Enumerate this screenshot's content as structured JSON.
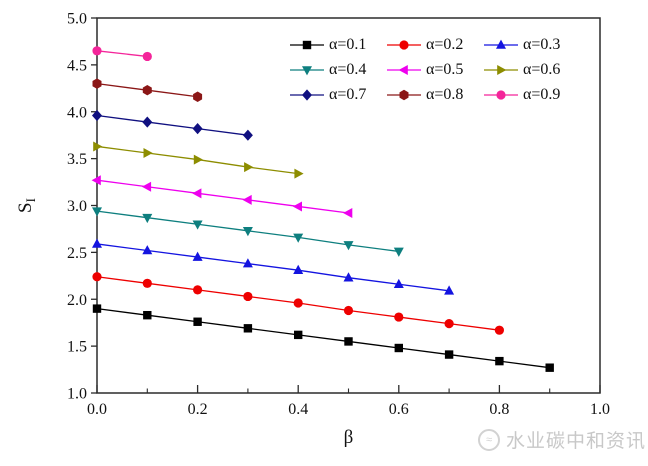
{
  "watermark": {
    "text": "水业碳中和资讯",
    "logo_icon": "circular-wave-logo"
  },
  "chart_data": {
    "type": "line",
    "title": "",
    "xlabel": "β",
    "ylabel": "S_I",
    "ylabel_base": "S",
    "ylabel_subscript": "I",
    "xlim": [
      0.0,
      1.0
    ],
    "ylim": [
      1.0,
      5.0
    ],
    "grid": false,
    "legend_position": "inside-top",
    "legend_columns": 3,
    "x_ticks": [
      0.0,
      0.2,
      0.4,
      0.6,
      0.8,
      1.0
    ],
    "x_tick_labels": [
      "0.0",
      "0.2",
      "0.4",
      "0.6",
      "0.8",
      "1.0"
    ],
    "x_minor_ticks": [
      0.1,
      0.3,
      0.5,
      0.7,
      0.9
    ],
    "y_ticks": [
      1.0,
      1.5,
      2.0,
      2.5,
      3.0,
      3.5,
      4.0,
      4.5,
      5.0
    ],
    "y_tick_labels": [
      "1.0",
      "1.5",
      "2.0",
      "2.5",
      "3.0",
      "3.5",
      "4.0",
      "4.5",
      "5.0"
    ],
    "series": [
      {
        "name": "α=0.1",
        "marker": "square",
        "color": "#000000",
        "x": [
          0.0,
          0.1,
          0.2,
          0.3,
          0.4,
          0.5,
          0.6,
          0.7,
          0.8,
          0.9
        ],
        "y": [
          1.9,
          1.83,
          1.76,
          1.69,
          1.62,
          1.55,
          1.48,
          1.41,
          1.34,
          1.27
        ]
      },
      {
        "name": "α=0.2",
        "marker": "circle",
        "color": "#ee0000",
        "x": [
          0.0,
          0.1,
          0.2,
          0.3,
          0.4,
          0.5,
          0.6,
          0.7,
          0.8
        ],
        "y": [
          2.24,
          2.17,
          2.1,
          2.03,
          1.96,
          1.88,
          1.81,
          1.74,
          1.67
        ]
      },
      {
        "name": "α=0.3",
        "marker": "triangle-up",
        "color": "#1414e0",
        "x": [
          0.0,
          0.1,
          0.2,
          0.3,
          0.4,
          0.5,
          0.6,
          0.7
        ],
        "y": [
          2.59,
          2.52,
          2.45,
          2.38,
          2.31,
          2.23,
          2.16,
          2.09
        ]
      },
      {
        "name": "α=0.4",
        "marker": "triangle-down",
        "color": "#0e7f7f",
        "x": [
          0.0,
          0.1,
          0.2,
          0.3,
          0.4,
          0.5,
          0.6
        ],
        "y": [
          2.94,
          2.87,
          2.8,
          2.73,
          2.66,
          2.58,
          2.51
        ]
      },
      {
        "name": "α=0.5",
        "marker": "triangle-left",
        "color": "#ee00ee",
        "x": [
          0.0,
          0.1,
          0.2,
          0.3,
          0.4,
          0.5
        ],
        "y": [
          3.27,
          3.2,
          3.13,
          3.06,
          2.99,
          2.92
        ]
      },
      {
        "name": "α=0.6",
        "marker": "triangle-right",
        "color": "#8d8d00",
        "x": [
          0.0,
          0.1,
          0.2,
          0.3,
          0.4
        ],
        "y": [
          3.63,
          3.56,
          3.49,
          3.41,
          3.34
        ]
      },
      {
        "name": "α=0.7",
        "marker": "diamond",
        "color": "#101080",
        "x": [
          0.0,
          0.1,
          0.2,
          0.3
        ],
        "y": [
          3.96,
          3.89,
          3.82,
          3.75
        ]
      },
      {
        "name": "α=0.8",
        "marker": "hexagon",
        "color": "#8b1717",
        "x": [
          0.0,
          0.1,
          0.2
        ],
        "y": [
          4.3,
          4.23,
          4.16
        ]
      },
      {
        "name": "α=0.9",
        "marker": "circle",
        "color": "#f4259a",
        "x": [
          0.0,
          0.1
        ],
        "y": [
          4.65,
          4.59
        ]
      }
    ]
  }
}
